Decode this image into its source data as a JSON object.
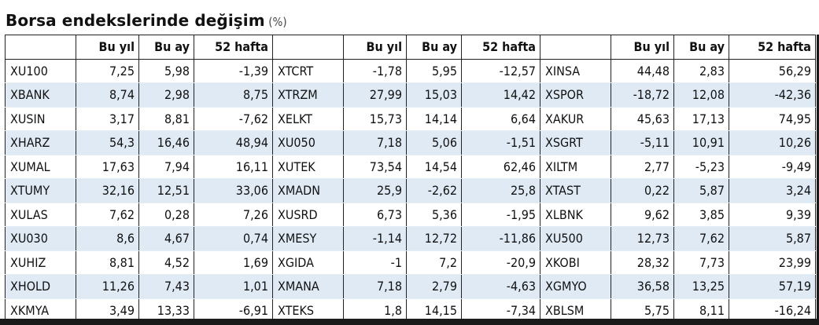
{
  "title": "Borsa endekslerinde değişim",
  "unit": "(%)",
  "columns": [
    "",
    "Bu yıl",
    "Bu ay",
    "52 hafta",
    "",
    "Bu yıl",
    "Bu ay",
    "52 hafta",
    "",
    "Bu yıl",
    "Bu ay",
    "52 hafta"
  ],
  "rows": [
    [
      "XU100",
      "7,25",
      "5,98",
      "-1,39",
      "XTCRT",
      "-1,78",
      "5,95",
      "-12,57",
      "XINSA",
      "44,48",
      "2,83",
      "56,29"
    ],
    [
      "XBANK",
      "8,74",
      "2,98",
      "8,75",
      "XTRZM",
      "27,99",
      "15,03",
      "14,42",
      "XSPOR",
      "-18,72",
      "12,08",
      "-42,36"
    ],
    [
      "XUSIN",
      "3,17",
      "8,81",
      "-7,62",
      "XELKT",
      "15,73",
      "14,14",
      "6,64",
      "XAKUR",
      "45,63",
      "17,13",
      "74,95"
    ],
    [
      "XHARZ",
      "54,3",
      "16,46",
      "48,94",
      "XU050",
      "7,18",
      "5,06",
      "-1,51",
      "XSGRT",
      "-5,11",
      "10,91",
      "10,26"
    ],
    [
      "XUMAL",
      "17,63",
      "7,94",
      "16,11",
      "XUTEK",
      "73,54",
      "14,54",
      "62,46",
      "XILTM",
      "2,77",
      "-5,23",
      "-9,49"
    ],
    [
      "XTUMY",
      "32,16",
      "12,51",
      "33,06",
      "XMADN",
      "25,9",
      "-2,62",
      "25,8",
      "XTAST",
      "0,22",
      "5,87",
      "3,24"
    ],
    [
      "XULAS",
      "7,62",
      "0,28",
      "7,26",
      "XUSRD",
      "6,73",
      "5,36",
      "-1,95",
      "XLBNK",
      "9,62",
      "3,85",
      "9,39"
    ],
    [
      "XU030",
      "8,6",
      "4,67",
      "0,74",
      "XMESY",
      "-1,14",
      "12,72",
      "-11,86",
      "XU500",
      "12,73",
      "7,62",
      "5,87"
    ],
    [
      "XUHIZ",
      "8,81",
      "4,52",
      "1,69",
      "XGIDA",
      "-1",
      "7,2",
      "-20,9",
      "XKOBI",
      "28,32",
      "7,73",
      "23,99"
    ],
    [
      "XHOLD",
      "11,26",
      "7,43",
      "1,01",
      "XMANA",
      "7,18",
      "2,79",
      "-4,63",
      "XGMYO",
      "36,58",
      "13,25",
      "57,19"
    ],
    [
      "XKMYA",
      "3,49",
      "13,33",
      "-6,91",
      "XTEKS",
      "1,8",
      "14,15",
      "-7,34",
      "XBLSM",
      "5,75",
      "8,11",
      "-16,24"
    ]
  ],
  "colors": {
    "shade": "#dfeaf5",
    "border": "#222222"
  }
}
